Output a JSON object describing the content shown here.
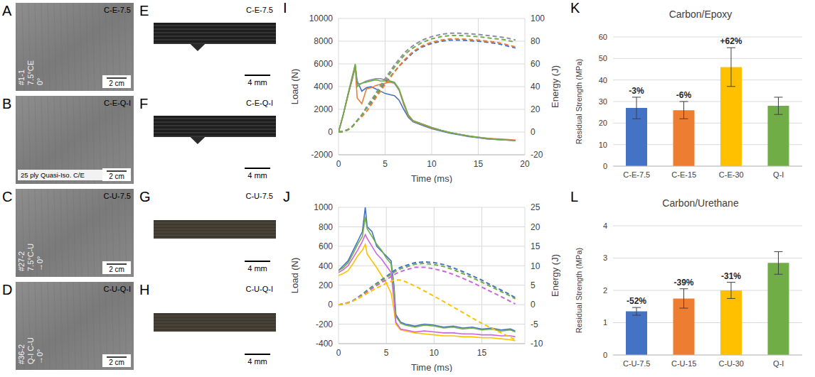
{
  "photos": [
    {
      "panel": "A",
      "title": "C-E-7.5",
      "markings": [
        "#1-1",
        "7.5°CE",
        "0°"
      ],
      "scale_bar": "2 cm"
    },
    {
      "panel": "B",
      "title": "C-E-Q-I",
      "markings": [
        "25 ply Quasi-Iso. C/E"
      ],
      "scale_bar": "2 cm"
    },
    {
      "panel": "C",
      "title": "C-U-7.5",
      "markings": [
        "#27-2",
        "7.5°C-U",
        "→0°"
      ],
      "scale_bar": "2 cm"
    },
    {
      "panel": "D",
      "title": "C-U-Q-I",
      "markings": [
        "#36-2",
        "Q-I C-U",
        "→0°"
      ],
      "scale_bar": "2 cm"
    }
  ],
  "sections": [
    {
      "panel": "E",
      "title": "C-E-7.5",
      "scale_bar": "4 mm"
    },
    {
      "panel": "F",
      "title": "C-E-Q-I",
      "scale_bar": "4 mm"
    },
    {
      "panel": "G",
      "title": "C-U-7.5",
      "scale_bar": "4 mm"
    },
    {
      "panel": "H",
      "title": "C-U-Q-I",
      "scale_bar": "4 mm"
    }
  ],
  "chart_data": [
    {
      "panel": "I",
      "type": "line",
      "x_label": "Time (ms)",
      "y_label": "Load (N)",
      "y2_label": "Energy (J)",
      "x": [
        0,
        0.5,
        1,
        1.5,
        1.8,
        2,
        2.5,
        3,
        3.5,
        4,
        4.5,
        5,
        5.5,
        6,
        6.5,
        7,
        7.5,
        8,
        9,
        10,
        11,
        12,
        13,
        14,
        15,
        16,
        17,
        18,
        19
      ],
      "xlim": [
        0,
        20
      ],
      "xticks": [
        0,
        5,
        10,
        15,
        20
      ],
      "ylim": [
        -2000,
        10000
      ],
      "yticks": [
        -2000,
        0,
        2000,
        4000,
        6000,
        8000,
        10000
      ],
      "y2lim": [
        -20,
        100
      ],
      "y2ticks": [
        -20,
        0,
        20,
        40,
        60,
        80,
        100
      ],
      "grid": true,
      "series": [
        {
          "color": "#4472c4",
          "line_style": "solid",
          "values": [
            0,
            1500,
            3200,
            4700,
            5800,
            4500,
            3600,
            3900,
            4000,
            3800,
            3600,
            3400,
            3300,
            3200,
            2800,
            2000,
            1300,
            900,
            600,
            300,
            100,
            -100,
            -250,
            -400,
            -500,
            -600,
            -650,
            -700,
            -750
          ]
        },
        {
          "color": "#ed7d31",
          "line_style": "solid",
          "values": [
            0,
            1500,
            3200,
            4800,
            5700,
            3000,
            2500,
            3800,
            3900,
            4100,
            4200,
            4300,
            4400,
            4300,
            3700,
            2400,
            1400,
            950,
            650,
            350,
            150,
            -50,
            -200,
            -350,
            -450,
            -550,
            -600,
            -650,
            -700
          ]
        },
        {
          "color": "#8c8ca8",
          "line_style": "solid",
          "values": [
            0,
            1500,
            3300,
            5000,
            5900,
            4200,
            4300,
            4500,
            4600,
            4700,
            4700,
            4600,
            4500,
            4300,
            3700,
            2500,
            1500,
            1000,
            700,
            400,
            150,
            -50,
            -200,
            -350,
            -500,
            -600,
            -650,
            -700,
            -750
          ]
        },
        {
          "color": "#70ad47",
          "line_style": "solid",
          "values": [
            0,
            1500,
            3200,
            4900,
            6000,
            4000,
            4300,
            4400,
            4500,
            4600,
            4500,
            4500,
            4500,
            4400,
            3800,
            2600,
            1500,
            1000,
            700,
            400,
            150,
            -50,
            -200,
            -350,
            -450,
            -550,
            -650,
            -700,
            -750
          ]
        },
        {
          "color": "#4472c4",
          "line_style": "dashed",
          "axis": "y2",
          "values": [
            0,
            0.5,
            2,
            5,
            8,
            10,
            15,
            21,
            26,
            32,
            38,
            43,
            48,
            53,
            58,
            62,
            66,
            70,
            75,
            78,
            80,
            81,
            81,
            80.5,
            80,
            79,
            78,
            76,
            74
          ]
        },
        {
          "color": "#ed7d31",
          "line_style": "dashed",
          "axis": "y2",
          "values": [
            0,
            0.5,
            2,
            5,
            8,
            10,
            13.5,
            18,
            24,
            30,
            36,
            42,
            47,
            53,
            58,
            63,
            67,
            71,
            76,
            79,
            81,
            82,
            82,
            81.5,
            81,
            80,
            79,
            77,
            75
          ]
        },
        {
          "color": "#8c8ca8",
          "line_style": "dashed",
          "axis": "y2",
          "values": [
            0,
            0.5,
            2,
            5,
            8,
            10,
            15,
            22,
            28,
            34,
            41,
            47,
            53,
            59,
            64,
            69,
            73,
            76,
            81,
            84,
            86,
            87,
            87,
            86.5,
            86,
            85,
            84,
            83,
            81
          ]
        },
        {
          "color": "#70ad47",
          "line_style": "dashed",
          "axis": "y2",
          "values": [
            0,
            0.5,
            2,
            5,
            8,
            10,
            15,
            21,
            27,
            33,
            39,
            45,
            51,
            57,
            62,
            67,
            71,
            74,
            79,
            82,
            84,
            85,
            85,
            84.5,
            84,
            83,
            82,
            81,
            79
          ]
        }
      ]
    },
    {
      "panel": "J",
      "type": "line",
      "x_label": "Time (ms)",
      "y_label": "Load (N)",
      "y2_label": "Energy (J)",
      "x": [
        0,
        0.5,
        1,
        1.5,
        2,
        2.5,
        2.8,
        3,
        3.5,
        4,
        4.5,
        5,
        5.5,
        5.8,
        6,
        6.5,
        7,
        8,
        9,
        10,
        11,
        12,
        13,
        14,
        15,
        16,
        17,
        18,
        18.5
      ],
      "xlim": [
        0,
        19.5
      ],
      "xticks": [
        0,
        5,
        10,
        15
      ],
      "ylim": [
        -400,
        1000
      ],
      "yticks": [
        -400,
        -200,
        0,
        200,
        400,
        600,
        800,
        1000
      ],
      "y2lim": [
        -10,
        25
      ],
      "y2ticks": [
        -10,
        -5,
        0,
        5,
        10,
        15,
        20,
        25
      ],
      "grid": true,
      "series": [
        {
          "color": "#4472c4",
          "line_style": "solid",
          "values": [
            350,
            400,
            450,
            550,
            650,
            750,
            1000,
            800,
            750,
            600,
            550,
            500,
            450,
            200,
            -100,
            -180,
            -200,
            -220,
            -200,
            -210,
            -230,
            -220,
            -240,
            -230,
            -250,
            -240,
            -260,
            -250,
            -270
          ]
        },
        {
          "color": "#70ad47",
          "line_style": "solid",
          "values": [
            350,
            380,
            430,
            520,
            620,
            700,
            900,
            780,
            700,
            620,
            560,
            480,
            420,
            150,
            -120,
            -190,
            -210,
            -230,
            -210,
            -220,
            -240,
            -230,
            -250,
            -240,
            -260,
            -250,
            -270,
            -260,
            -280
          ]
        },
        {
          "color": "#ffc000",
          "line_style": "solid",
          "values": [
            300,
            320,
            350,
            420,
            500,
            560,
            620,
            520,
            450,
            380,
            300,
            220,
            120,
            -50,
            -200,
            -260,
            -270,
            -290,
            -300,
            -310,
            -320,
            -320,
            -330,
            -330,
            -340,
            -340,
            -350,
            -360,
            -370
          ]
        },
        {
          "color": "#cc66dd",
          "line_style": "solid",
          "values": [
            330,
            360,
            400,
            480,
            560,
            650,
            720,
            680,
            600,
            520,
            470,
            400,
            330,
            50,
            -180,
            -250,
            -260,
            -280,
            -270,
            -280,
            -290,
            -290,
            -300,
            -300,
            -310,
            -310,
            -320,
            -320,
            -330
          ]
        },
        {
          "color": "#4472c4",
          "line_style": "dashed",
          "axis": "y2",
          "values": [
            0,
            0.2,
            0.5,
            1,
            1.8,
            2.7,
            3.3,
            3.7,
            4.6,
            5.5,
            6.4,
            7.2,
            8.2,
            8.7,
            9,
            9.6,
            10,
            10.8,
            11,
            10.8,
            10.3,
            9.5,
            8.5,
            7.4,
            6.3,
            5,
            3.8,
            2.5,
            1.8
          ]
        },
        {
          "color": "#70ad47",
          "line_style": "dashed",
          "axis": "y2",
          "values": [
            0,
            0.2,
            0.5,
            1,
            1.7,
            2.6,
            3.1,
            3.5,
            4.4,
            5.3,
            6.1,
            7,
            7.8,
            8.3,
            8.6,
            9.2,
            9.6,
            10.4,
            10.6,
            10.3,
            9.8,
            9,
            8,
            6.9,
            5.8,
            4.6,
            3.4,
            2.2,
            1.5
          ]
        },
        {
          "color": "#cc66dd",
          "line_style": "dashed",
          "axis": "y2",
          "values": [
            0,
            0.2,
            0.5,
            1,
            1.6,
            2.4,
            2.9,
            3.3,
            4.1,
            4.9,
            5.7,
            6.4,
            7.2,
            7.6,
            8,
            8.5,
            8.9,
            9.6,
            9.6,
            9.2,
            8.6,
            7.8,
            6.8,
            5.7,
            4.5,
            3.3,
            2.1,
            0.8,
            0.2
          ]
        },
        {
          "color": "#ffc000",
          "line_style": "dashed",
          "axis": "y2",
          "values": [
            0,
            0.2,
            0.4,
            0.9,
            1.5,
            2.2,
            2.6,
            2.9,
            3.6,
            4.3,
            4.9,
            5.5,
            6,
            6.3,
            6.4,
            6.3,
            5.9,
            4.8,
            3.5,
            2.2,
            0.8,
            -0.6,
            -2,
            -3.4,
            -4.8,
            -6,
            -7.2,
            -8.4,
            -9
          ]
        }
      ]
    },
    {
      "panel": "K",
      "type": "bar",
      "title": "Carbon/Epoxy",
      "y_label": "Residual Strength (MPa)",
      "categories": [
        "C-E-7.5",
        "C-E-15",
        "C-E-30",
        "Q-I"
      ],
      "values": [
        27,
        26,
        46,
        28
      ],
      "errors": [
        5,
        4,
        9,
        4
      ],
      "colors": [
        "#4472c4",
        "#ed7d31",
        "#ffc000",
        "#70ad47"
      ],
      "annotations": [
        "-3%",
        "-6%",
        "+62%",
        null
      ],
      "ylim": [
        0,
        60
      ],
      "yticks": [
        0,
        10,
        20,
        30,
        40,
        50,
        60
      ],
      "grid": true
    },
    {
      "panel": "L",
      "type": "bar",
      "title": "Carbon/Urethane",
      "y_label": "Residual Strength (MPa)",
      "categories": [
        "C-U-7.5",
        "C-U-15",
        "C-U-30",
        "Q-I"
      ],
      "values": [
        1.35,
        1.75,
        2.0,
        2.85
      ],
      "errors": [
        0.12,
        0.3,
        0.25,
        0.35
      ],
      "colors": [
        "#4472c4",
        "#ed7d31",
        "#ffc000",
        "#70ad47"
      ],
      "annotations": [
        "-52%",
        "-39%",
        "-31%",
        null
      ],
      "ylim": [
        0,
        4
      ],
      "yticks": [
        0,
        1,
        2,
        3,
        4
      ],
      "grid": true
    }
  ]
}
